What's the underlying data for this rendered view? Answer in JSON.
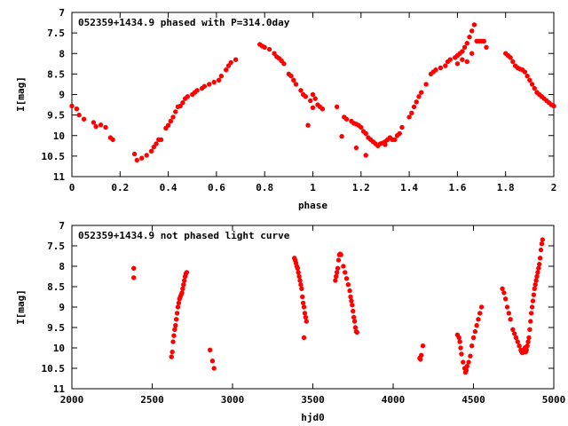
{
  "point_color": "#ff0000",
  "chart_data": [
    {
      "type": "scatter",
      "title": "052359+1434.9 phased with P=314.0day",
      "xlabel": "phase",
      "ylabel": "I[mag]",
      "xlim": [
        0,
        2
      ],
      "ylim": [
        11,
        7
      ],
      "y_inverted": true,
      "xticks": [
        "0",
        "0.2",
        "0.4",
        "0.6",
        "0.8",
        "1",
        "1.2",
        "1.4",
        "1.6",
        "1.8",
        "2"
      ],
      "yticks": [
        "7",
        "7.5",
        "8",
        "8.5",
        "9",
        "9.5",
        "10",
        "10.5",
        "11"
      ],
      "grid": false,
      "series": [
        {
          "points": [
            [
              0.0,
              9.28
            ],
            [
              0.02,
              9.35
            ],
            [
              0.03,
              9.5
            ],
            [
              0.05,
              9.6
            ],
            [
              0.09,
              9.68
            ],
            [
              0.1,
              9.78
            ],
            [
              0.12,
              9.74
            ],
            [
              0.14,
              9.8
            ],
            [
              0.16,
              10.05
            ],
            [
              0.17,
              10.1
            ],
            [
              0.26,
              10.45
            ],
            [
              0.27,
              10.6
            ],
            [
              0.29,
              10.55
            ],
            [
              0.31,
              10.48
            ],
            [
              0.33,
              10.38
            ],
            [
              0.34,
              10.28
            ],
            [
              0.35,
              10.2
            ],
            [
              0.36,
              10.1
            ],
            [
              0.37,
              10.1
            ],
            [
              0.39,
              9.82
            ],
            [
              0.4,
              9.75
            ],
            [
              0.41,
              9.65
            ],
            [
              0.42,
              9.55
            ],
            [
              0.43,
              9.42
            ],
            [
              0.44,
              9.3
            ],
            [
              0.45,
              9.28
            ],
            [
              0.46,
              9.2
            ],
            [
              0.47,
              9.1
            ],
            [
              0.48,
              9.05
            ],
            [
              0.5,
              9.0
            ],
            [
              0.51,
              8.95
            ],
            [
              0.52,
              8.9
            ],
            [
              0.54,
              8.85
            ],
            [
              0.55,
              8.8
            ],
            [
              0.57,
              8.75
            ],
            [
              0.59,
              8.7
            ],
            [
              0.61,
              8.65
            ],
            [
              0.62,
              8.55
            ],
            [
              0.64,
              8.4
            ],
            [
              0.65,
              8.3
            ],
            [
              0.66,
              8.22
            ],
            [
              0.68,
              8.15
            ],
            [
              0.78,
              7.78
            ],
            [
              0.79,
              7.82
            ],
            [
              0.8,
              7.85
            ],
            [
              0.82,
              7.9
            ],
            [
              0.84,
              8.0
            ],
            [
              0.85,
              8.08
            ],
            [
              0.86,
              8.12
            ],
            [
              0.87,
              8.18
            ],
            [
              0.88,
              8.25
            ],
            [
              0.9,
              8.5
            ],
            [
              0.91,
              8.55
            ],
            [
              0.92,
              8.65
            ],
            [
              0.93,
              8.75
            ],
            [
              0.95,
              8.9
            ],
            [
              0.96,
              9.0
            ],
            [
              0.97,
              9.05
            ],
            [
              0.99,
              9.15
            ],
            [
              1.0,
              9.0
            ],
            [
              1.01,
              9.1
            ],
            [
              1.02,
              9.25
            ],
            [
              1.03,
              9.3
            ],
            [
              1.04,
              9.35
            ],
            [
              1.0,
              9.32
            ],
            [
              0.98,
              9.75
            ],
            [
              1.1,
              9.3
            ],
            [
              1.12,
              10.02
            ],
            [
              1.13,
              9.55
            ],
            [
              1.14,
              9.6
            ],
            [
              1.16,
              9.65
            ],
            [
              1.17,
              9.7
            ],
            [
              1.18,
              9.72
            ],
            [
              1.19,
              9.75
            ],
            [
              1.2,
              9.8
            ],
            [
              1.21,
              9.9
            ],
            [
              1.22,
              9.95
            ],
            [
              1.23,
              10.05
            ],
            [
              1.24,
              10.1
            ],
            [
              1.25,
              10.15
            ],
            [
              1.26,
              10.2
            ],
            [
              1.27,
              10.25
            ],
            [
              1.28,
              10.2
            ],
            [
              1.29,
              10.18
            ],
            [
              1.3,
              10.15
            ],
            [
              1.31,
              10.1
            ],
            [
              1.32,
              10.05
            ],
            [
              1.33,
              10.1
            ],
            [
              1.34,
              10.1
            ],
            [
              1.35,
              10.0
            ],
            [
              1.36,
              9.95
            ],
            [
              1.37,
              9.8
            ],
            [
              1.18,
              10.3
            ],
            [
              1.22,
              10.48
            ],
            [
              1.3,
              10.22
            ],
            [
              1.4,
              9.55
            ],
            [
              1.41,
              9.45
            ],
            [
              1.42,
              9.3
            ],
            [
              1.43,
              9.18
            ],
            [
              1.44,
              9.05
            ],
            [
              1.45,
              8.95
            ],
            [
              1.47,
              8.75
            ],
            [
              1.49,
              8.5
            ],
            [
              1.5,
              8.45
            ],
            [
              1.51,
              8.4
            ],
            [
              1.53,
              8.35
            ],
            [
              1.55,
              8.3
            ],
            [
              1.56,
              8.2
            ],
            [
              1.57,
              8.15
            ],
            [
              1.59,
              8.1
            ],
            [
              1.6,
              8.05
            ],
            [
              1.61,
              8.0
            ],
            [
              1.62,
              7.95
            ],
            [
              1.63,
              7.85
            ],
            [
              1.64,
              7.75
            ],
            [
              1.65,
              7.6
            ],
            [
              1.66,
              7.45
            ],
            [
              1.67,
              7.3
            ],
            [
              1.68,
              7.7
            ],
            [
              1.69,
              7.7
            ],
            [
              1.7,
              7.7
            ],
            [
              1.71,
              7.7
            ],
            [
              1.6,
              8.25
            ],
            [
              1.62,
              8.15
            ],
            [
              1.64,
              8.2
            ],
            [
              1.66,
              8.0
            ],
            [
              1.72,
              7.85
            ],
            [
              1.8,
              8.0
            ],
            [
              1.81,
              8.05
            ],
            [
              1.82,
              8.1
            ],
            [
              1.83,
              8.2
            ],
            [
              1.84,
              8.3
            ],
            [
              1.85,
              8.35
            ],
            [
              1.86,
              8.38
            ],
            [
              1.87,
              8.4
            ],
            [
              1.88,
              8.45
            ],
            [
              1.89,
              8.55
            ],
            [
              1.9,
              8.65
            ],
            [
              1.91,
              8.75
            ],
            [
              1.92,
              8.85
            ],
            [
              1.93,
              8.95
            ],
            [
              1.94,
              9.0
            ],
            [
              1.95,
              9.05
            ],
            [
              1.96,
              9.1
            ],
            [
              1.97,
              9.15
            ],
            [
              1.98,
              9.2
            ],
            [
              1.99,
              9.25
            ],
            [
              2.0,
              9.28
            ]
          ]
        }
      ]
    },
    {
      "type": "scatter",
      "title": "052359+1434.9 not phased light curve",
      "xlabel": "hjd0",
      "ylabel": "I[mag]",
      "xlim": [
        2000,
        5000
      ],
      "ylim": [
        11,
        7
      ],
      "y_inverted": true,
      "xticks": [
        "2000",
        "2500",
        "3000",
        "3500",
        "4000",
        "4500",
        "5000"
      ],
      "yticks": [
        "7",
        "7.5",
        "8",
        "8.5",
        "9",
        "9.5",
        "10",
        "10.5",
        "11"
      ],
      "grid": false,
      "series": [
        {
          "points": [
            [
              2385,
              8.05
            ],
            [
              2385,
              8.28
            ],
            [
              2620,
              10.22
            ],
            [
              2625,
              10.1
            ],
            [
              2630,
              9.85
            ],
            [
              2635,
              9.7
            ],
            [
              2640,
              9.55
            ],
            [
              2645,
              9.45
            ],
            [
              2650,
              9.3
            ],
            [
              2655,
              9.15
            ],
            [
              2660,
              9.0
            ],
            [
              2665,
              8.9
            ],
            [
              2670,
              8.8
            ],
            [
              2675,
              8.75
            ],
            [
              2680,
              8.7
            ],
            [
              2685,
              8.65
            ],
            [
              2690,
              8.55
            ],
            [
              2695,
              8.45
            ],
            [
              2700,
              8.35
            ],
            [
              2705,
              8.25
            ],
            [
              2710,
              8.18
            ],
            [
              2715,
              8.15
            ],
            [
              2860,
              10.05
            ],
            [
              2875,
              10.32
            ],
            [
              2885,
              10.5
            ],
            [
              3385,
              7.8
            ],
            [
              3390,
              7.85
            ],
            [
              3395,
              7.92
            ],
            [
              3400,
              8.0
            ],
            [
              3405,
              8.05
            ],
            [
              3410,
              8.15
            ],
            [
              3415,
              8.25
            ],
            [
              3420,
              8.35
            ],
            [
              3425,
              8.45
            ],
            [
              3430,
              8.55
            ],
            [
              3435,
              8.75
            ],
            [
              3440,
              8.9
            ],
            [
              3445,
              9.0
            ],
            [
              3450,
              9.15
            ],
            [
              3455,
              9.25
            ],
            [
              3460,
              9.35
            ],
            [
              3445,
              9.75
            ],
            [
              3640,
              8.35
            ],
            [
              3645,
              8.25
            ],
            [
              3650,
              8.15
            ],
            [
              3655,
              8.05
            ],
            [
              3660,
              7.85
            ],
            [
              3665,
              7.72
            ],
            [
              3670,
              7.7
            ],
            [
              3675,
              7.72
            ],
            [
              3690,
              8.0
            ],
            [
              3700,
              8.15
            ],
            [
              3710,
              8.3
            ],
            [
              3720,
              8.45
            ],
            [
              3730,
              8.6
            ],
            [
              3735,
              8.75
            ],
            [
              3740,
              8.85
            ],
            [
              3745,
              8.95
            ],
            [
              3750,
              9.1
            ],
            [
              3755,
              9.25
            ],
            [
              3760,
              9.35
            ],
            [
              3765,
              9.5
            ],
            [
              3770,
              9.6
            ],
            [
              3775,
              9.62
            ],
            [
              4165,
              10.25
            ],
            [
              4170,
              10.28
            ],
            [
              4175,
              10.18
            ],
            [
              4185,
              9.95
            ],
            [
              4400,
              9.68
            ],
            [
              4410,
              9.75
            ],
            [
              4415,
              9.85
            ],
            [
              4420,
              10.0
            ],
            [
              4425,
              10.15
            ],
            [
              4435,
              10.35
            ],
            [
              4445,
              10.5
            ],
            [
              4450,
              10.6
            ],
            [
              4455,
              10.55
            ],
            [
              4460,
              10.45
            ],
            [
              4470,
              10.35
            ],
            [
              4480,
              10.2
            ],
            [
              4490,
              9.95
            ],
            [
              4500,
              9.75
            ],
            [
              4510,
              9.6
            ],
            [
              4520,
              9.45
            ],
            [
              4530,
              9.3
            ],
            [
              4540,
              9.15
            ],
            [
              4550,
              9.0
            ],
            [
              4680,
              8.55
            ],
            [
              4690,
              8.65
            ],
            [
              4700,
              8.8
            ],
            [
              4710,
              9.0
            ],
            [
              4720,
              9.15
            ],
            [
              4730,
              9.3
            ],
            [
              4745,
              9.55
            ],
            [
              4755,
              9.65
            ],
            [
              4765,
              9.75
            ],
            [
              4775,
              9.85
            ],
            [
              4785,
              9.95
            ],
            [
              4795,
              10.05
            ],
            [
              4800,
              10.1
            ],
            [
              4805,
              10.12
            ],
            [
              4810,
              10.1
            ],
            [
              4815,
              10.05
            ],
            [
              4820,
              10.0
            ],
            [
              4825,
              10.1
            ],
            [
              4830,
              10.05
            ],
            [
              4835,
              9.95
            ],
            [
              4840,
              9.85
            ],
            [
              4845,
              9.75
            ],
            [
              4850,
              9.55
            ],
            [
              4855,
              9.35
            ],
            [
              4860,
              9.15
            ],
            [
              4865,
              9.0
            ],
            [
              4870,
              8.85
            ],
            [
              4875,
              8.7
            ],
            [
              4880,
              8.55
            ],
            [
              4885,
              8.45
            ],
            [
              4890,
              8.35
            ],
            [
              4895,
              8.25
            ],
            [
              4900,
              8.15
            ],
            [
              4905,
              8.05
            ],
            [
              4910,
              7.95
            ],
            [
              4915,
              7.8
            ],
            [
              4920,
              7.6
            ],
            [
              4925,
              7.45
            ],
            [
              4930,
              7.35
            ]
          ]
        }
      ]
    }
  ]
}
